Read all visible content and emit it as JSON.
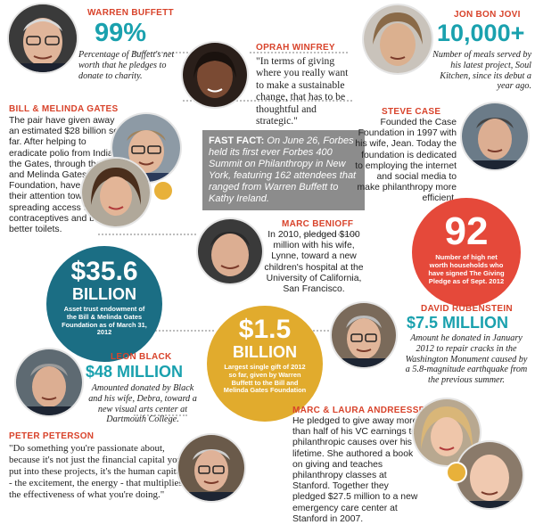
{
  "warren": {
    "name": "WARREN BUFFETT",
    "stat": "99%",
    "desc": "Percentage of Buffett's net worth that he pledges to donate to charity."
  },
  "oprah": {
    "name": "OPRAH WINFREY",
    "quote": "\"In terms of giving where you really want to make a sustainable change, that has to be thoughtful and strategic.\""
  },
  "bonjovi": {
    "name": "JON BON JOVI",
    "stat": "10,000+",
    "desc": "Number of meals served by his latest project, Soul Kitchen, since its debut a year ago."
  },
  "gates": {
    "name": "BILL & MELINDA GATES",
    "text": "The pair have given away an estimated $28 billion so far. After helping to eradicate polio from India, the Gates, through their Bill and Melinda Gates Foundation, have turned their attention toward spreading access to contraceptives and building better toilets."
  },
  "fastfact": {
    "label": "FAST FACT:",
    "text": "On June 26, Forbes held its first ever Forbes 400 Summit on Philanthropy in New York, featuring 162 attendees that ranged from Warren Buffett to Kathy Ireland."
  },
  "stevecase": {
    "name": "STEVE CASE",
    "text": "Founded the Case Foundation in 1997 with his wife, Jean. Today the foundation is dedicated to employing the internet and social media to make philanthropy more efficient."
  },
  "benioff": {
    "name": "MARC BENIOFF",
    "text": "In 2010, pledged $100 million with his wife, Lynne, toward a new children's hospital at the University of California, San Francisco."
  },
  "pledge": {
    "number": "92",
    "desc": "Number of high net worth households who have signed The Giving Pledge as of Sept. 2012"
  },
  "endowment": {
    "amount": "$35.6",
    "unit": "BILLION",
    "desc": "Asset trust endowment of the Bill & Melinda Gates Foundation as of March 31, 2012"
  },
  "largest": {
    "amount": "$1.5",
    "unit": "BILLION",
    "desc": "Largest single gift of 2012 so far, given by Warren Buffett to the Bill and Melinda Gates Foundation"
  },
  "rubenstein": {
    "name": "DAVID RUBENSTEIN",
    "stat": "$7.5 MILLION",
    "desc": "Amount he donated in January 2012 to repair cracks in the Washington Monument caused by a 5.8-magnitude earthquake from the previous summer."
  },
  "leonblack": {
    "name": "LEON BLACK",
    "stat": "$48 MILLION",
    "desc": "Amounted donated by Black and his wife, Debra, toward a new visual arts center at Dartmouth College."
  },
  "peterson": {
    "name": "PETER PETERSON",
    "quote": "\"Do something you're passionate about, because it's not just the financial capital you put into these projects, it's the human capital - the excitement, the energy - that multiplies the effectiveness of what you're doing.\""
  },
  "andreessen": {
    "name": "MARC & LAURA ANDREESSEN",
    "text": "He pledged to give away more than half of his VC earnings to philanthropic causes over his lifetime. She authored a book on giving and teaches philanthropy classes at Stanford. Together they pledged $27.5 million to a new emergency care center at Stanford in 2007."
  },
  "colors": {
    "red": "#d8432b",
    "teal": "#1aa1ae",
    "darkteal": "#1a6f82",
    "gold": "#e0aa2c",
    "gray": "#8c8c8c"
  }
}
